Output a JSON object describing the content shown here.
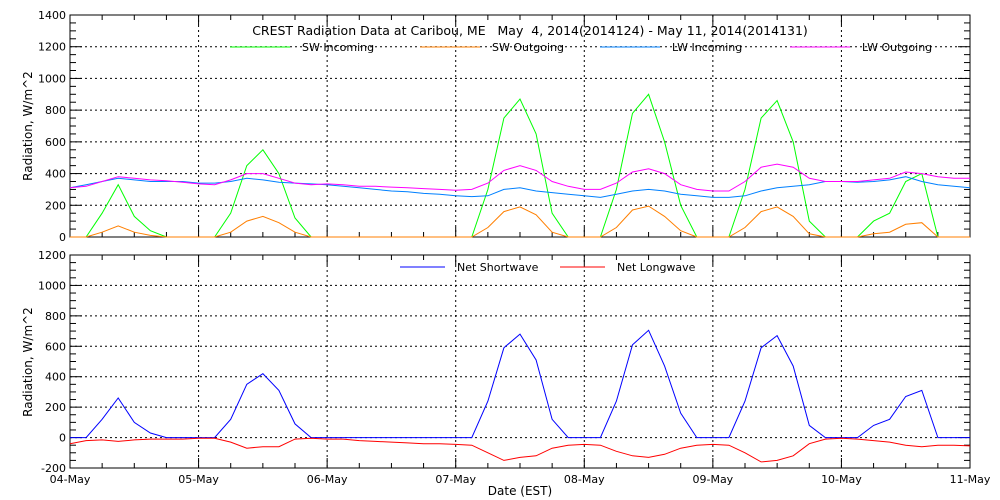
{
  "chart_data": [
    {
      "type": "line",
      "title": "CREST Radiation Data at Caribou, ME   May  4, 2014(2014124) - May 11, 2014(2014131)",
      "xlabel": "",
      "ylabel": "Radiation, W/m^2",
      "ylim": [
        0,
        1400
      ],
      "yticks": [
        "0",
        "200",
        "400",
        "600",
        "800",
        "1000",
        "1200",
        "1400"
      ],
      "x_hours_step": 3,
      "xlim_hours": [
        0,
        168
      ],
      "grid": true,
      "legend": "top",
      "series": [
        {
          "name": "SW Incoming",
          "color": "#00ff00",
          "values": [
            0,
            0,
            150,
            330,
            130,
            40,
            0,
            0,
            0,
            0,
            150,
            450,
            550,
            400,
            120,
            0,
            0,
            0,
            0,
            0,
            0,
            0,
            0,
            0,
            0,
            0,
            300,
            750,
            870,
            650,
            150,
            0,
            0,
            0,
            300,
            780,
            900,
            600,
            200,
            0,
            0,
            0,
            300,
            750,
            860,
            600,
            100,
            0,
            0,
            0,
            100,
            150,
            350,
            400,
            0,
            0,
            0
          ]
        },
        {
          "name": "SW Outgoing",
          "color": "#ff7f00",
          "values": [
            0,
            0,
            30,
            70,
            30,
            10,
            0,
            0,
            0,
            0,
            30,
            100,
            130,
            90,
            30,
            0,
            0,
            0,
            0,
            0,
            0,
            0,
            0,
            0,
            0,
            0,
            60,
            160,
            190,
            140,
            30,
            0,
            0,
            0,
            60,
            170,
            195,
            130,
            40,
            0,
            0,
            0,
            60,
            160,
            190,
            130,
            20,
            0,
            0,
            0,
            20,
            30,
            80,
            90,
            0,
            0,
            0
          ]
        },
        {
          "name": "LW Incoming",
          "color": "#0080ff",
          "values": [
            310,
            330,
            350,
            370,
            360,
            350,
            350,
            350,
            340,
            340,
            350,
            370,
            360,
            345,
            340,
            335,
            330,
            320,
            310,
            300,
            290,
            285,
            275,
            270,
            260,
            255,
            260,
            300,
            310,
            290,
            280,
            270,
            260,
            250,
            270,
            290,
            300,
            290,
            270,
            260,
            250,
            250,
            260,
            290,
            310,
            320,
            330,
            350,
            350,
            345,
            350,
            360,
            380,
            350,
            330,
            320,
            310
          ]
        },
        {
          "name": "LW Outgoing",
          "color": "#ff00ff",
          "values": [
            310,
            320,
            350,
            380,
            370,
            360,
            355,
            345,
            335,
            330,
            360,
            400,
            400,
            370,
            340,
            330,
            335,
            330,
            320,
            320,
            315,
            310,
            305,
            300,
            295,
            300,
            340,
            420,
            450,
            420,
            350,
            320,
            300,
            300,
            340,
            410,
            430,
            400,
            330,
            300,
            290,
            290,
            350,
            440,
            460,
            440,
            370,
            350,
            350,
            350,
            360,
            370,
            410,
            400,
            380,
            370,
            370
          ]
        }
      ]
    },
    {
      "type": "line",
      "title": "",
      "xlabel": "Date (EST)",
      "ylabel": "Radiation, W/m^2",
      "ylim": [
        -200,
        1200
      ],
      "yticks": [
        "-200",
        "0",
        "200",
        "400",
        "600",
        "800",
        "1000",
        "1200"
      ],
      "x_hours_step": 3,
      "xlim_hours": [
        0,
        168
      ],
      "xticks": [
        "04-May",
        "05-May",
        "06-May",
        "07-May",
        "08-May",
        "09-May",
        "10-May",
        "11-May"
      ],
      "grid": true,
      "legend": "top",
      "series": [
        {
          "name": "Net Shortwave",
          "color": "#0000ff",
          "values": [
            0,
            0,
            120,
            260,
            100,
            30,
            0,
            0,
            0,
            0,
            120,
            350,
            420,
            310,
            90,
            0,
            0,
            0,
            0,
            0,
            0,
            0,
            0,
            0,
            0,
            0,
            240,
            590,
            680,
            510,
            120,
            0,
            0,
            0,
            240,
            610,
            705,
            470,
            160,
            0,
            0,
            0,
            240,
            590,
            670,
            470,
            80,
            0,
            0,
            0,
            80,
            120,
            270,
            310,
            0,
            0,
            0
          ]
        },
        {
          "name": "Net Longwave",
          "color": "#ff0000",
          "values": [
            -40,
            -20,
            -15,
            -25,
            -15,
            -10,
            -10,
            -10,
            -5,
            -5,
            -30,
            -70,
            -60,
            -60,
            -10,
            -5,
            -10,
            -10,
            -20,
            -25,
            -30,
            -35,
            -40,
            -40,
            -45,
            -50,
            -100,
            -150,
            -130,
            -120,
            -70,
            -50,
            -45,
            -50,
            -90,
            -120,
            -130,
            -110,
            -70,
            -50,
            -45,
            -50,
            -100,
            -160,
            -150,
            -120,
            -40,
            -10,
            -5,
            -10,
            -20,
            -30,
            -50,
            -60,
            -50,
            -50,
            -55
          ]
        }
      ]
    }
  ]
}
